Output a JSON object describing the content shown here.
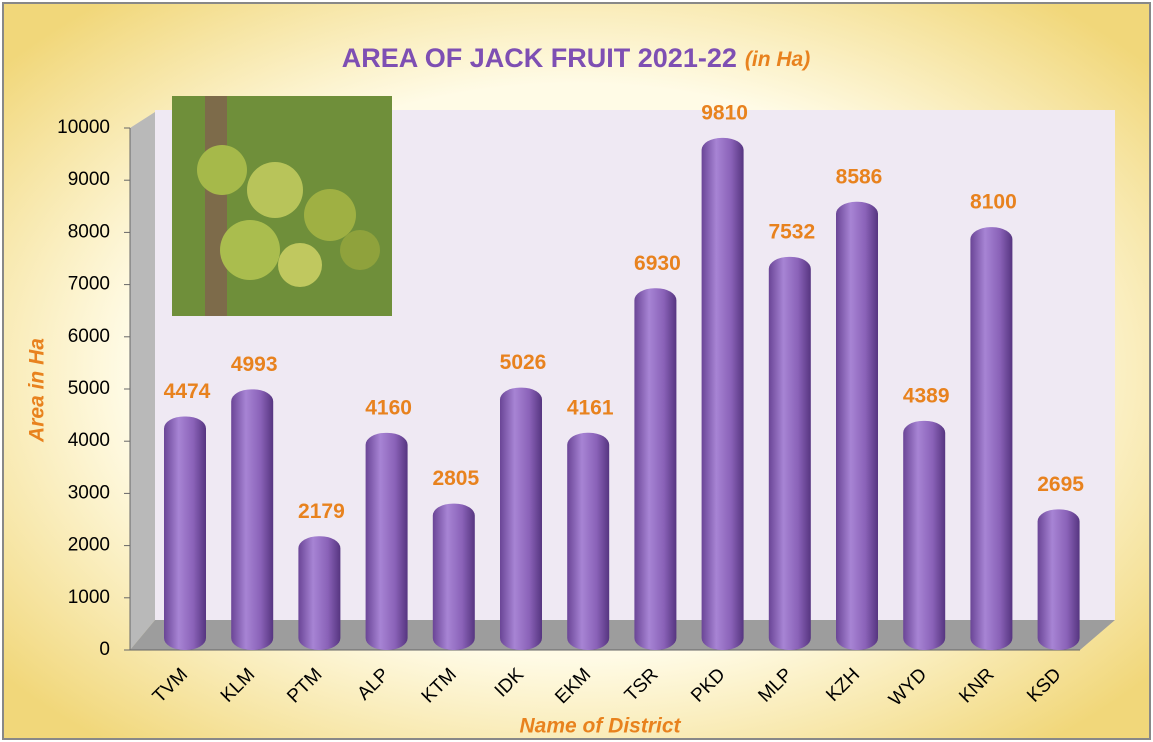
{
  "chart_data": {
    "type": "bar",
    "title": "AREA OF JACK FRUIT 2021-22",
    "subtitle": "(in Ha)",
    "y_label": "Area in Ha",
    "x_label": "Name of District",
    "categories": [
      "TVM",
      "KLM",
      "PTM",
      "ALP",
      "KTM",
      "IDK",
      "EKM",
      "TSR",
      "PKD",
      "MLP",
      "KZH",
      "WYD",
      "KNR",
      "KSD"
    ],
    "values": [
      4474,
      4993,
      2179,
      4160,
      2805,
      5026,
      4161,
      6930,
      9810,
      7532,
      8586,
      4389,
      8100,
      2695
    ],
    "color": "#8a62b8",
    "ylim": [
      0,
      10000
    ],
    "yticks": [
      0,
      1000,
      2000,
      3000,
      4000,
      5000,
      6000,
      7000,
      8000,
      9000,
      10000
    ],
    "grid": false
  }
}
